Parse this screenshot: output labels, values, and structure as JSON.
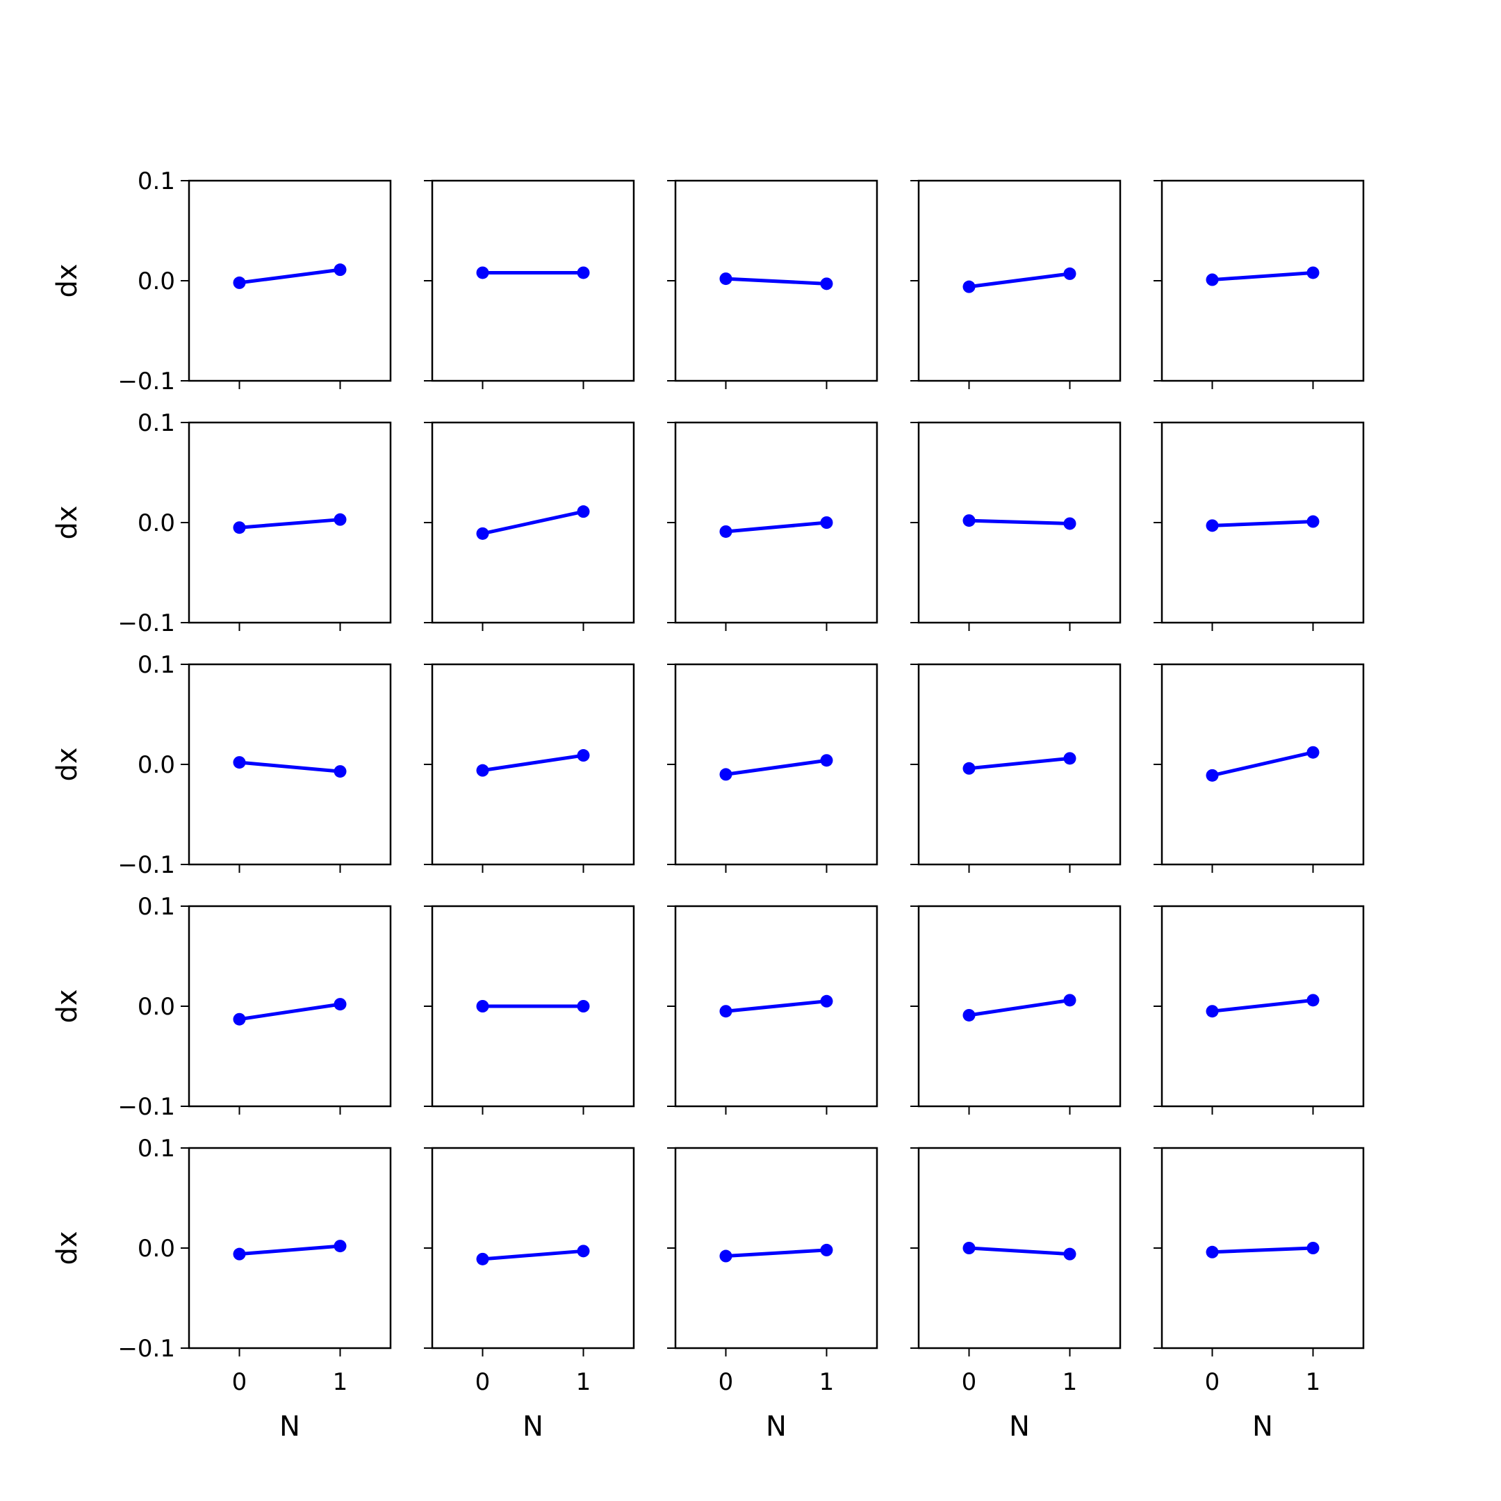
{
  "chart_data": {
    "type": "line",
    "layout": {
      "rows": 5,
      "cols": 5
    },
    "xlabel": "N",
    "ylabel": "dx",
    "x": [
      0,
      1
    ],
    "x_ticks": [
      0,
      1
    ],
    "x_tick_labels": [
      "0",
      "1"
    ],
    "xlim": [
      -0.5,
      1.5
    ],
    "ylim": [
      -0.1,
      0.1
    ],
    "y_ticks": [
      -0.1,
      0.0,
      0.1
    ],
    "y_tick_labels": [
      "−0.1",
      "0.0",
      "0.1"
    ],
    "line_color": "#0000ff",
    "marker": "circle",
    "grid": false,
    "panels": [
      [
        -0.002,
        0.011
      ],
      [
        0.008,
        0.008
      ],
      [
        0.002,
        -0.003
      ],
      [
        -0.006,
        0.007
      ],
      [
        0.001,
        0.008
      ],
      [
        -0.005,
        0.003
      ],
      [
        -0.011,
        0.011
      ],
      [
        -0.009,
        0.0
      ],
      [
        0.002,
        -0.001
      ],
      [
        -0.003,
        0.001
      ],
      [
        0.002,
        -0.007
      ],
      [
        -0.006,
        0.009
      ],
      [
        -0.01,
        0.004
      ],
      [
        -0.004,
        0.006
      ],
      [
        -0.011,
        0.012
      ],
      [
        -0.013,
        0.002
      ],
      [
        0.0,
        0.0
      ],
      [
        -0.005,
        0.005
      ],
      [
        -0.009,
        0.006
      ],
      [
        -0.005,
        0.006
      ],
      [
        -0.006,
        0.002
      ],
      [
        -0.011,
        -0.003
      ],
      [
        -0.008,
        -0.002
      ],
      [
        0.0,
        -0.006
      ],
      [
        -0.004,
        0.0
      ]
    ]
  }
}
